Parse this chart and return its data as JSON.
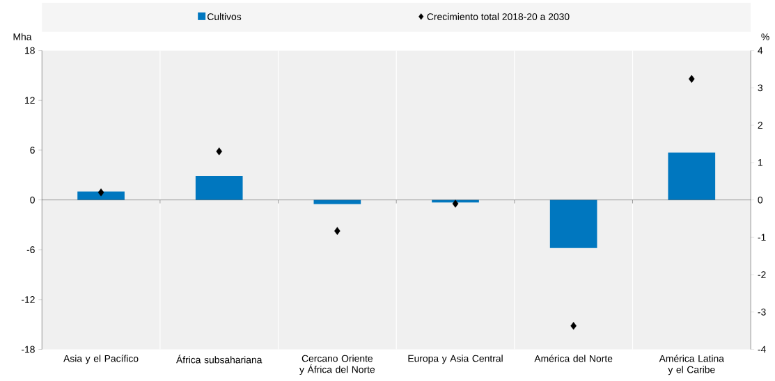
{
  "chart_data": {
    "type": "bar",
    "categories": [
      "Asia y el Pacífico",
      "África subsahariana",
      "Cercano Oriente y África del Norte",
      "Europa y Asia Central",
      "América del Norte",
      "América Latina y el Caribe"
    ],
    "series": [
      {
        "name": "Cultivos",
        "color": "#0077bf",
        "values": [
          1.0,
          2.9,
          -0.5,
          -0.3,
          -5.8,
          5.7
        ]
      },
      {
        "name": "Crecimiento total 2018-20 a 2030",
        "type": "scatter",
        "axis": "y2",
        "marker": "diamond",
        "color": "#000000",
        "values": [
          0.2,
          1.3,
          -0.83,
          -0.1,
          -3.37,
          3.24
        ]
      }
    ],
    "ylabel": "Mha",
    "y2label": "%",
    "ylim": [
      -18,
      18
    ],
    "yticks": [
      -18,
      -12,
      -6,
      0,
      6,
      12,
      18
    ],
    "y2lim": [
      -4,
      4
    ],
    "y2ticks": [
      -4,
      -3,
      -2,
      -1,
      0,
      1,
      2,
      3,
      4
    ],
    "grid": "x",
    "legend": "top"
  }
}
